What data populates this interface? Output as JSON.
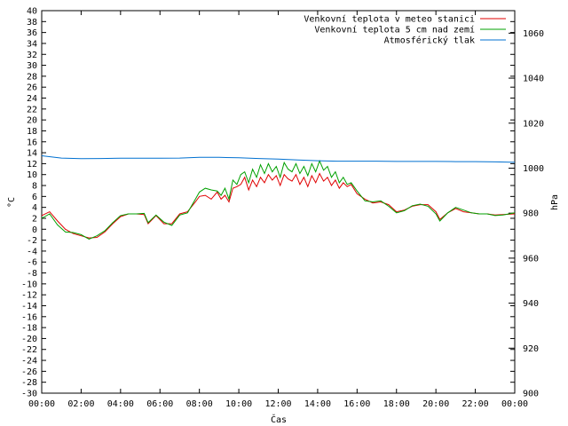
{
  "chart_data": {
    "type": "line",
    "xlabel": "Čas",
    "ylabel": "°C",
    "y2label": "hPa",
    "xlim": [
      0,
      24
    ],
    "ylim": [
      -30,
      40
    ],
    "y2lim": [
      900,
      1070
    ],
    "x_ticks": [
      "00:00",
      "02:00",
      "04:00",
      "06:00",
      "08:00",
      "10:00",
      "12:00",
      "14:00",
      "16:00",
      "18:00",
      "20:00",
      "22:00",
      "00:00"
    ],
    "y_ticks": [
      -30,
      -28,
      -26,
      -24,
      -22,
      -20,
      -18,
      -16,
      -14,
      -12,
      -10,
      -8,
      -6,
      -4,
      -2,
      0,
      2,
      4,
      6,
      8,
      10,
      12,
      14,
      16,
      18,
      20,
      22,
      24,
      26,
      28,
      30,
      32,
      34,
      36,
      38,
      40
    ],
    "y2_ticks": [
      900,
      920,
      940,
      960,
      980,
      1000,
      1020,
      1040,
      1060
    ],
    "grid": false,
    "legend_position": "top-right",
    "series": [
      {
        "name": "Venkovní teplota v meteo stanici",
        "color": "#e00000",
        "axis": "left",
        "x": [
          0,
          0.4,
          0.8,
          1.2,
          1.6,
          2,
          2.4,
          2.8,
          3.2,
          3.6,
          4,
          4.4,
          4.8,
          5.2,
          5.4,
          5.8,
          6.2,
          6.6,
          7,
          7.4,
          7.8,
          8,
          8.3,
          8.6,
          8.9,
          9.1,
          9.3,
          9.5,
          9.7,
          9.9,
          10.1,
          10.3,
          10.5,
          10.7,
          10.9,
          11.1,
          11.3,
          11.5,
          11.7,
          11.9,
          12.1,
          12.3,
          12.5,
          12.7,
          12.9,
          13.1,
          13.3,
          13.5,
          13.7,
          13.9,
          14.1,
          14.3,
          14.5,
          14.7,
          14.9,
          15.1,
          15.3,
          15.5,
          15.7,
          16,
          16.4,
          16.8,
          17.2,
          17.6,
          18,
          18.4,
          18.8,
          19.2,
          19.6,
          20,
          20.2,
          20.6,
          21,
          21.4,
          21.8,
          22.2,
          22.6,
          23,
          23.4,
          24
        ],
        "y": [
          2.5,
          3.2,
          1.5,
          0,
          -0.8,
          -1.2,
          -1.6,
          -1.5,
          -0.5,
          1,
          2.3,
          2.8,
          2.8,
          2.7,
          1,
          2.5,
          1,
          1,
          2.8,
          3.2,
          5,
          6,
          6.2,
          5.5,
          6.8,
          5.5,
          6.2,
          5,
          7.5,
          7.8,
          8.2,
          9.5,
          7.2,
          9,
          7.8,
          9.5,
          8.5,
          10,
          9,
          9.8,
          8,
          10,
          9.2,
          8.8,
          10,
          8.2,
          9.5,
          7.8,
          9.8,
          8.5,
          10.2,
          8.8,
          9.5,
          8,
          9,
          7.5,
          8.5,
          7.8,
          8.2,
          6.5,
          5.5,
          4.8,
          5,
          4.5,
          3.2,
          3.5,
          4.2,
          4.5,
          4.5,
          3.2,
          1.8,
          3,
          3.8,
          3.2,
          3,
          2.8,
          2.8,
          2.6,
          2.7,
          2.8
        ]
      },
      {
        "name": "Venkovní teplota 5 cm nad zemí",
        "color": "#00a000",
        "axis": "left",
        "x": [
          0,
          0.4,
          0.8,
          1.2,
          1.6,
          2,
          2.4,
          2.8,
          3.2,
          3.6,
          4,
          4.4,
          4.8,
          5.2,
          5.4,
          5.8,
          6.2,
          6.6,
          7,
          7.4,
          7.8,
          8,
          8.3,
          8.6,
          8.9,
          9.1,
          9.3,
          9.5,
          9.7,
          9.9,
          10.1,
          10.3,
          10.5,
          10.7,
          10.9,
          11.1,
          11.3,
          11.5,
          11.7,
          11.9,
          12.1,
          12.3,
          12.5,
          12.7,
          12.9,
          13.1,
          13.3,
          13.5,
          13.7,
          13.9,
          14.1,
          14.3,
          14.5,
          14.7,
          14.9,
          15.1,
          15.3,
          15.5,
          15.7,
          16,
          16.4,
          16.8,
          17.2,
          17.6,
          18,
          18.4,
          18.8,
          19.2,
          19.6,
          20,
          20.2,
          20.6,
          21,
          21.4,
          21.8,
          22.2,
          22.6,
          23,
          23.4,
          24
        ],
        "y": [
          2,
          2.8,
          0.8,
          -0.5,
          -0.6,
          -1,
          -1.8,
          -1.2,
          -0.3,
          1.2,
          2.5,
          2.8,
          2.8,
          2.9,
          1.2,
          2.6,
          1.3,
          0.7,
          2.6,
          3,
          5.5,
          6.8,
          7.5,
          7.2,
          7,
          6.2,
          7.5,
          5.5,
          9,
          8.2,
          10,
          10.5,
          8.5,
          11,
          9.5,
          11.8,
          10.2,
          12,
          10.5,
          11.5,
          9.5,
          12.2,
          11,
          10.5,
          12,
          10.2,
          11.5,
          9.8,
          12,
          10.5,
          12.5,
          10.8,
          11.5,
          9.5,
          10.5,
          8.5,
          9.5,
          8.2,
          8.5,
          7,
          5.2,
          5,
          5.2,
          4.2,
          3,
          3.4,
          4.3,
          4.6,
          4.2,
          2.8,
          1.5,
          3,
          4,
          3.5,
          3,
          2.8,
          2.8,
          2.5,
          2.6,
          3
        ]
      },
      {
        "name": "Atmosférický tlak",
        "color": "#0070d0",
        "axis": "right",
        "x": [
          0,
          1,
          2,
          3,
          4,
          5,
          6,
          7,
          8,
          9,
          10,
          11,
          12,
          13,
          14,
          15,
          16,
          17,
          18,
          19,
          20,
          21,
          22,
          23,
          24
        ],
        "y": [
          1005.5,
          1004.5,
          1004.2,
          1004.3,
          1004.4,
          1004.4,
          1004.4,
          1004.5,
          1004.8,
          1004.8,
          1004.6,
          1004.3,
          1004,
          1003.6,
          1003.3,
          1003.1,
          1003.1,
          1003.1,
          1003,
          1003,
          1003,
          1002.9,
          1002.9,
          1002.8,
          1002.6
        ]
      }
    ]
  }
}
